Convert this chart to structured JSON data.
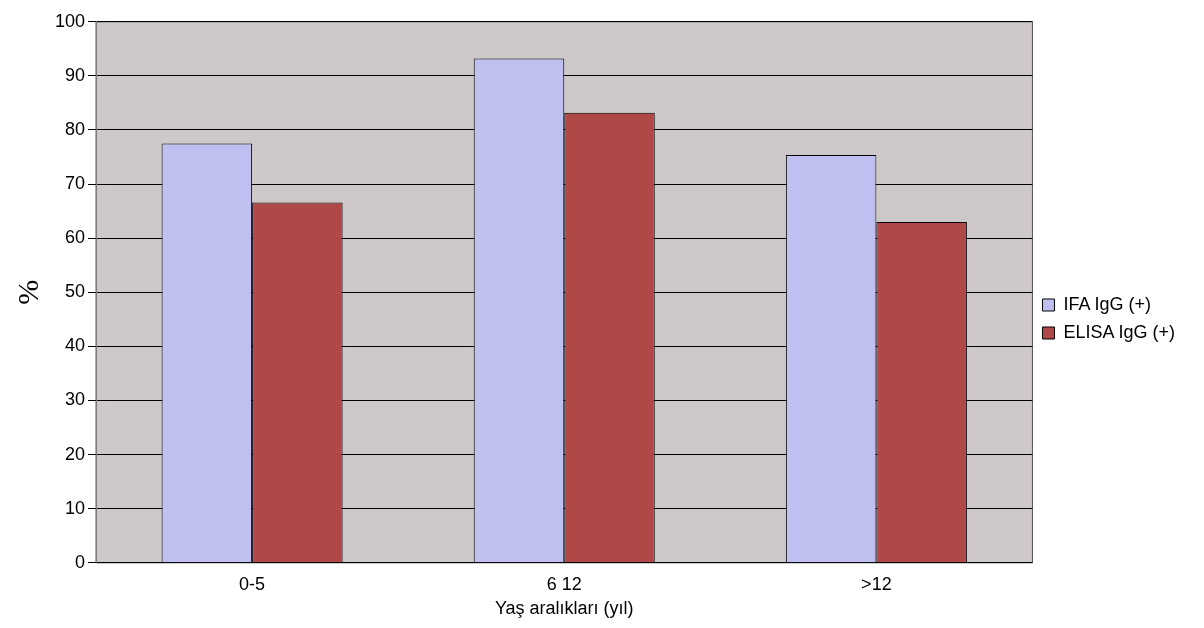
{
  "chart_data": {
    "type": "bar",
    "xlabel": "Yaş aralıkları (yıl)",
    "ylabel": "%",
    "categories": [
      "0-5",
      "6 12",
      ">12"
    ],
    "series": [
      {
        "name": "IFA IgG (+)",
        "color": "#c0c0f0",
        "values": [
          77.5,
          93.2,
          75.4
        ]
      },
      {
        "name": "ELISA IgG (+)",
        "color": "#b04848",
        "values": [
          66.6,
          83.2,
          63.0
        ]
      }
    ],
    "ylim": [
      0,
      100
    ],
    "yticks": [
      0,
      10,
      20,
      30,
      40,
      50,
      60,
      70,
      80,
      90,
      100
    ],
    "grid": "y",
    "legend": "right"
  }
}
